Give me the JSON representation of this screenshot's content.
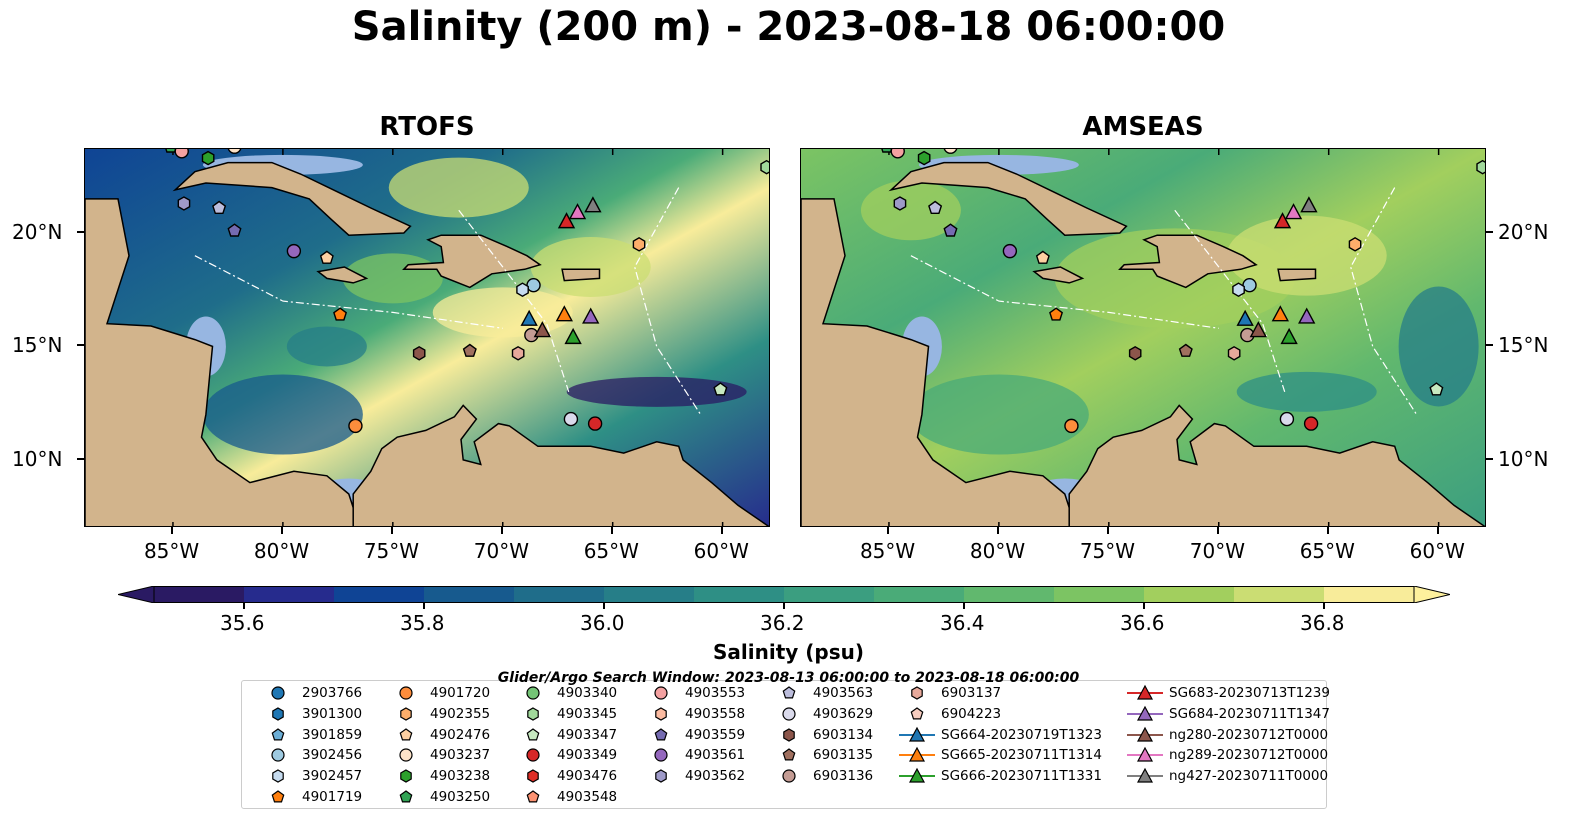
{
  "title": "Salinity (200 m) - 2023-08-18 06:00:00",
  "panels": [
    {
      "title": "RTOFS",
      "model": "rtofs"
    },
    {
      "title": "AMSEAS",
      "model": "amseas"
    }
  ],
  "map": {
    "lon_range": [
      -89,
      -57.8
    ],
    "lat_range": [
      7,
      23.7
    ],
    "lon_ticks": [
      {
        "lon": -85,
        "label": "85°W"
      },
      {
        "lon": -80,
        "label": "80°W"
      },
      {
        "lon": -75,
        "label": "75°W"
      },
      {
        "lon": -70,
        "label": "70°W"
      },
      {
        "lon": -65,
        "label": "65°W"
      },
      {
        "lon": -60,
        "label": "60°W"
      }
    ],
    "lat_ticks": [
      {
        "lat": 20,
        "label": "20°N"
      },
      {
        "lat": 15,
        "label": "15°N"
      },
      {
        "lat": 10,
        "label": "10°N"
      }
    ],
    "land_color": "#d2b48c",
    "shelf_color": "#97b6e1"
  },
  "colorbar": {
    "label": "Salinity (psu)",
    "min": 35.5,
    "max": 36.9,
    "step": 0.1,
    "extend": "both",
    "ticks": [
      "35.6",
      "35.8",
      "36.0",
      "36.2",
      "36.4",
      "36.6",
      "36.8"
    ],
    "colors": [
      "#2a1a63",
      "#262b8d",
      "#0f4495",
      "#175a8e",
      "#1f6d8a",
      "#267e88",
      "#2e8f85",
      "#3b9e80",
      "#4aab78",
      "#61b86e",
      "#7cc463",
      "#a2cf5e",
      "#cbdd73",
      "#f8ec9a"
    ],
    "under_color": "#2a1a63",
    "over_color": "#fdf09d"
  },
  "search_window": "Glider/Argo Search Window: 2023-08-13 06:00:00 to 2023-08-18 06:00:00",
  "platforms": [
    {
      "id": "2903766",
      "marker": "circle",
      "color": "#1f77b4",
      "lon": null,
      "lat": null
    },
    {
      "id": "3901300",
      "marker": "hexagon",
      "color": "#1f77b4",
      "lon": null,
      "lat": null
    },
    {
      "id": "3901859",
      "marker": "pentagon",
      "color": "#6baed6",
      "lon": null,
      "lat": null
    },
    {
      "id": "3902456",
      "marker": "circle",
      "color": "#9ecae1",
      "lon": -68.6,
      "lat": 17.7
    },
    {
      "id": "3902457",
      "marker": "hexagon",
      "color": "#c6dbef",
      "lon": -69.1,
      "lat": 17.5
    },
    {
      "id": "4901719",
      "marker": "pentagon",
      "color": "#ff7f0e",
      "lon": -77.4,
      "lat": 16.4
    },
    {
      "id": "4901720",
      "marker": "circle",
      "color": "#fd8d3c",
      "lon": -76.7,
      "lat": 11.5
    },
    {
      "id": "4902355",
      "marker": "hexagon",
      "color": "#fdae6b",
      "lon": -63.8,
      "lat": 19.5
    },
    {
      "id": "4902476",
      "marker": "pentagon",
      "color": "#fdd0a2",
      "lon": -78.0,
      "lat": 18.9
    },
    {
      "id": "4903237",
      "marker": "circle",
      "color": "#fde3c8",
      "lon": -82.2,
      "lat": 23.8
    },
    {
      "id": "4903238",
      "marker": "hexagon",
      "color": "#2ca02c",
      "lon": -83.4,
      "lat": 23.3
    },
    {
      "id": "4903250",
      "marker": "pentagon",
      "color": "#31a354",
      "lon": -85.1,
      "lat": 23.8
    },
    {
      "id": "4903340",
      "marker": "circle",
      "color": "#74c476",
      "lon": null,
      "lat": null
    },
    {
      "id": "4903345",
      "marker": "hexagon",
      "color": "#a1d99b",
      "lon": -58.0,
      "lat": 22.9
    },
    {
      "id": "4903347",
      "marker": "pentagon",
      "color": "#c7e9c0",
      "lon": -60.1,
      "lat": 13.1
    },
    {
      "id": "4903349",
      "marker": "circle",
      "color": "#d62728",
      "lon": -65.8,
      "lat": 11.6
    },
    {
      "id": "4903476",
      "marker": "hexagon",
      "color": "#de2d26",
      "lon": null,
      "lat": null
    },
    {
      "id": "4903548",
      "marker": "pentagon",
      "color": "#fc9272",
      "lon": null,
      "lat": null
    },
    {
      "id": "4903553",
      "marker": "circle",
      "color": "#f4a1a1",
      "lon": -84.6,
      "lat": 23.6
    },
    {
      "id": "4903558",
      "marker": "hexagon",
      "color": "#fcbba1",
      "lon": null,
      "lat": null
    },
    {
      "id": "4903559",
      "marker": "pentagon",
      "color": "#756bb1",
      "lon": -82.2,
      "lat": 20.1
    },
    {
      "id": "4903561",
      "marker": "circle",
      "color": "#9467bd",
      "lon": -79.5,
      "lat": 19.2
    },
    {
      "id": "4903562",
      "marker": "hexagon",
      "color": "#9e9ac8",
      "lon": -84.5,
      "lat": 21.3
    },
    {
      "id": "4903563",
      "marker": "pentagon",
      "color": "#bcbddc",
      "lon": -82.9,
      "lat": 21.1
    },
    {
      "id": "4903629",
      "marker": "circle",
      "color": "#dadaeb",
      "lon": -66.9,
      "lat": 11.8
    },
    {
      "id": "6903134",
      "marker": "hexagon",
      "color": "#8c564b",
      "lon": -73.8,
      "lat": 14.7
    },
    {
      "id": "6903135",
      "marker": "pentagon",
      "color": "#a0705f",
      "lon": -71.5,
      "lat": 14.8
    },
    {
      "id": "6903136",
      "marker": "circle",
      "color": "#c49c94",
      "lon": -68.7,
      "lat": 15.5
    },
    {
      "id": "6903137",
      "marker": "hexagon",
      "color": "#e7a99b",
      "lon": -69.3,
      "lat": 14.7
    },
    {
      "id": "6904223",
      "marker": "pentagon",
      "color": "#f7cdc0",
      "lon": null,
      "lat": null
    },
    {
      "id": "SG664-20230719T1323",
      "marker": "triangle",
      "color": "#1f77b4",
      "line": true,
      "lon": -68.8,
      "lat": 16.2
    },
    {
      "id": "SG665-20230711T1314",
      "marker": "triangle",
      "color": "#ff7f0e",
      "line": true,
      "lon": -67.2,
      "lat": 16.4
    },
    {
      "id": "SG666-20230711T1331",
      "marker": "triangle",
      "color": "#2ca02c",
      "line": true,
      "lon": -66.8,
      "lat": 15.4
    },
    {
      "id": "SG683-20230713T1239",
      "marker": "triangle",
      "color": "#d62728",
      "line": true,
      "lon": -67.1,
      "lat": 20.5
    },
    {
      "id": "SG684-20230711T1347",
      "marker": "triangle",
      "color": "#9467bd",
      "line": true,
      "lon": -66.0,
      "lat": 16.3
    },
    {
      "id": "ng280-20230712T0000",
      "marker": "triangle",
      "color": "#8c564b",
      "line": true,
      "lon": -68.2,
      "lat": 15.7
    },
    {
      "id": "ng289-20230712T0000",
      "marker": "triangle",
      "color": "#e377c2",
      "line": true,
      "lon": -66.6,
      "lat": 20.9
    },
    {
      "id": "ng427-20230711T0000",
      "marker": "triangle",
      "color": "#7f7f7f",
      "line": true,
      "lon": -65.9,
      "lat": 21.2
    }
  ]
}
